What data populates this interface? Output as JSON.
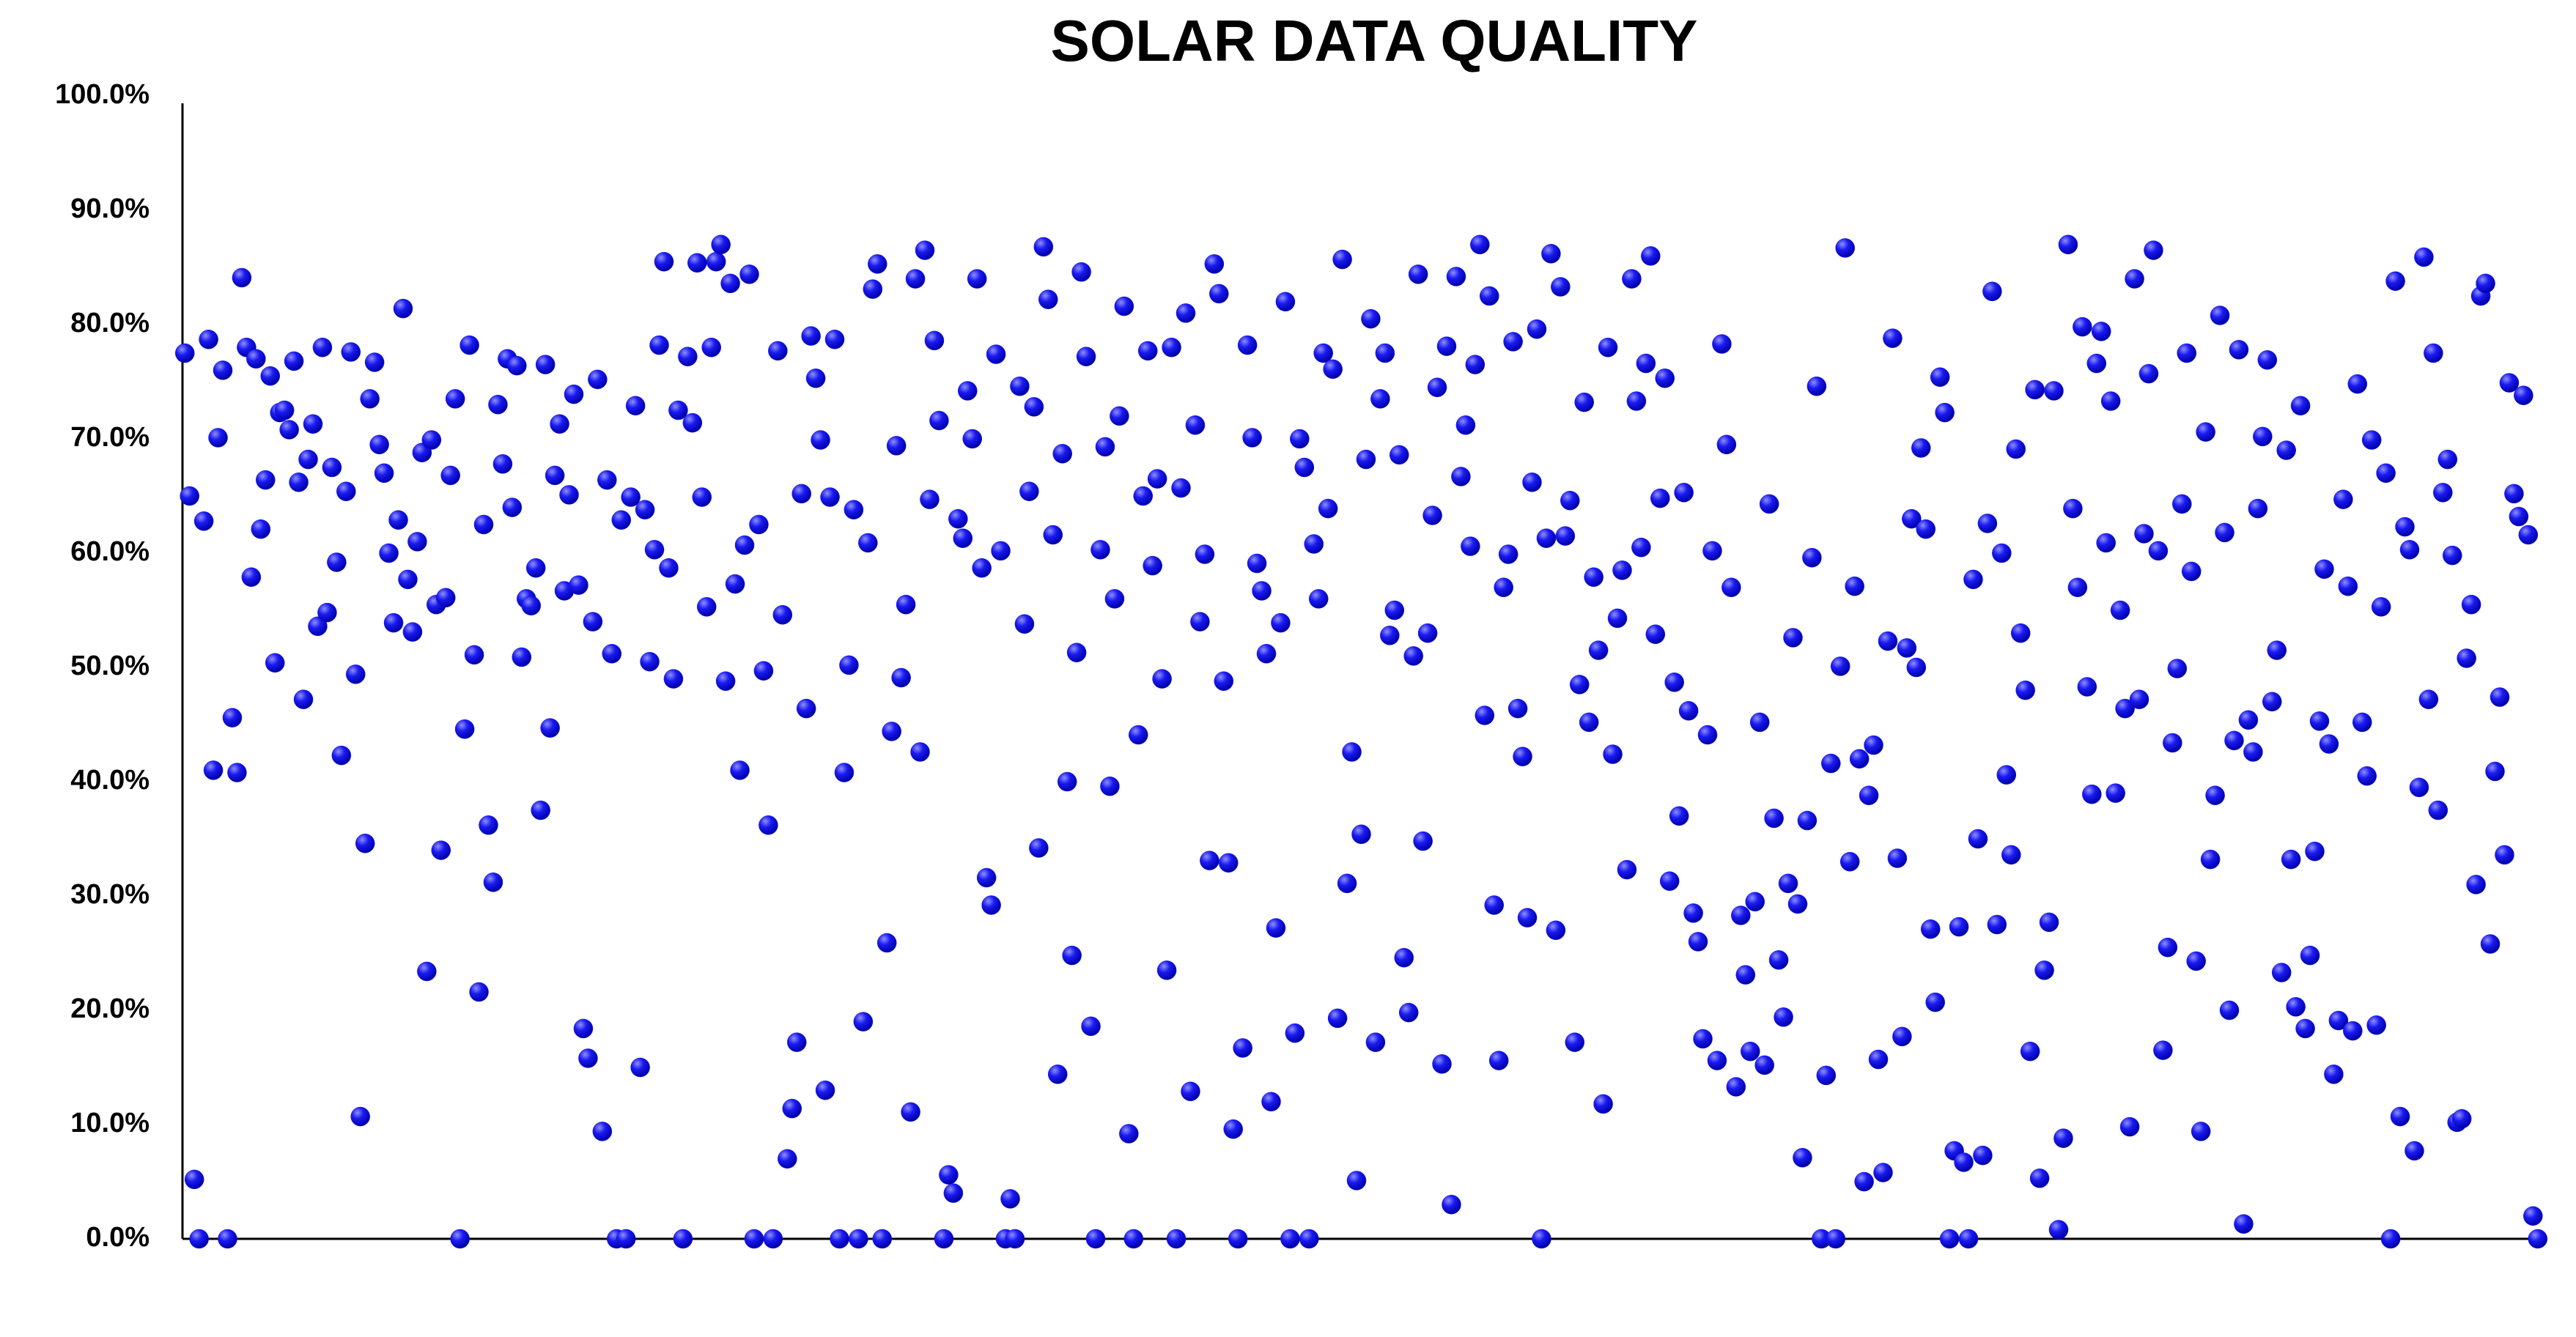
{
  "chart_data": {
    "type": "scatter",
    "title": "SOLAR DATA QUALITY",
    "color": "#1010ee",
    "ylim": [
      0,
      100
    ],
    "yticks": [
      {
        "value": 0,
        "label": "0.0%"
      },
      {
        "value": 10,
        "label": "10.0%"
      },
      {
        "value": 20,
        "label": "20.0%"
      },
      {
        "value": 30,
        "label": "30.0%"
      },
      {
        "value": 40,
        "label": "40.0%"
      },
      {
        "value": 50,
        "label": "50.0%"
      },
      {
        "value": 60,
        "label": "60.0%"
      },
      {
        "value": 70,
        "label": "70.0%"
      },
      {
        "value": 80,
        "label": "80.0%"
      },
      {
        "value": 90,
        "label": "90.0%"
      },
      {
        "value": 100,
        "label": "100.0%"
      }
    ],
    "grid": false,
    "values": [
      77.5,
      65,
      5.2,
      0,
      62.8,
      78.7,
      41,
      70.1,
      76,
      0,
      45.6,
      40.8,
      84.1,
      78,
      57.9,
      77,
      62.1,
      66.4,
      75.5,
      50.4,
      72.3,
      72.5,
      70.8,
      76.8,
      66.2,
      47.2,
      68.2,
      71.3,
      53.6,
      78,
      54.8,
      67.5,
      59.2,
      42.3,
      65.4,
      77.6,
      49.4,
      10.7,
      34.6,
      73.5,
      76.7,
      69.5,
      67,
      60,
      53.9,
      62.9,
      81.4,
      57.7,
      53.1,
      61,
      68.8,
      23.4,
      69.9,
      55.5,
      34,
      56.1,
      66.8,
      73.5,
      0,
      44.6,
      78.2,
      51.1,
      21.6,
      62.5,
      36.2,
      31.2,
      73,
      67.8,
      77,
      64,
      76.4,
      50.9,
      56,
      55.4,
      58.7,
      37.5,
      76.5,
      44.7,
      66.8,
      71.3,
      56.7,
      65.1,
      73.9,
      57.2,
      18.4,
      15.8,
      54,
      75.2,
      9.4,
      66.4,
      51.2,
      0,
      62.9,
      0,
      64.9,
      72.9,
      15,
      63.8,
      50.5,
      60.3,
      78.2,
      85.5,
      58.7,
      49,
      72.5,
      0,
      77.2,
      71.4,
      85.4,
      64.9,
      55.3,
      78,
      85.5,
      87,
      48.8,
      83.6,
      57.3,
      41,
      60.7,
      84.4,
      0,
      62.5,
      49.7,
      36.2,
      0,
      77.7,
      54.6,
      7,
      11.4,
      17.2,
      65.2,
      46.4,
      79,
      75.3,
      69.9,
      13,
      64.9,
      78.7,
      0,
      40.8,
      50.2,
      63.8,
      0,
      19,
      60.9,
      83.1,
      85.3,
      0,
      25.9,
      44.4,
      69.4,
      49.1,
      55.5,
      11.1,
      84,
      42.6,
      86.5,
      64.7,
      78.6,
      71.6,
      0,
      5.6,
      4,
      63,
      61.3,
      74.2,
      70,
      84,
      58.7,
      31.6,
      29.2,
      77.4,
      60.2,
      0,
      3.5,
      0,
      74.6,
      53.8,
      65.4,
      72.8,
      34.2,
      86.8,
      82.2,
      61.6,
      14.4,
      68.7,
      40,
      24.8,
      51.3,
      84.6,
      77.2,
      18.6,
      0,
      60.3,
      69.3,
      39.6,
      56,
      72,
      81.6,
      9.2,
      0,
      44.1,
      65,
      77.7,
      58.9,
      66.5,
      49,
      23.5,
      78,
      0,
      65.7,
      81,
      12.9,
      71.2,
      54,
      59.9,
      33.1,
      85.3,
      82.7,
      48.8,
      32.9,
      9.6,
      0,
      16.7,
      78.2,
      70.1,
      59.1,
      56.7,
      51.2,
      12,
      27.2,
      53.9,
      82,
      0,
      18,
      70,
      67.5,
      0,
      60.8,
      56,
      77.5,
      63.9,
      76.1,
      19.3,
      85.7,
      31.1,
      42.6,
      5.1,
      35.4,
      68.2,
      80.5,
      17.2,
      73.5,
      77.5,
      52.8,
      55,
      68.6,
      24.6,
      19.8,
      51,
      84.4,
      34.8,
      53,
      63.3,
      74.5,
      15.3,
      78.1,
      3,
      84.2,
      66.7,
      71.2,
      60.6,
      76.5,
      87,
      45.8,
      82.5,
      29.2,
      15.6,
      57,
      59.9,
      78.5,
      46.4,
      42.2,
      28.1,
      66.2,
      79.6,
      0,
      61.3,
      86.2,
      27,
      83.3,
      61.5,
      64.6,
      17.2,
      48.5,
      73.2,
      45.2,
      57.9,
      51.5,
      11.8,
      78,
      42.4,
      54.3,
      58.5,
      32.3,
      84,
      73.3,
      60.5,
      76.6,
      86,
      52.9,
      64.8,
      75.3,
      31.3,
      48.7,
      37,
      65.3,
      46.2,
      28.5,
      26,
      17.5,
      44.1,
      60.2,
      15.6,
      78.3,
      69.5,
      57,
      13.3,
      28.3,
      23.1,
      16.4,
      29.5,
      45.2,
      15.2,
      64.3,
      36.8,
      24.4,
      19.4,
      31.1,
      52.6,
      29.3,
      7.1,
      36.6,
      59.6,
      74.6,
      0,
      14.3,
      41.6,
      0,
      50.1,
      86.7,
      33,
      57.1,
      42,
      5,
      38.8,
      43.2,
      15.7,
      5.8,
      52.3,
      78.8,
      33.3,
      17.7,
      51.7,
      63,
      50,
      69.2,
      62.1,
      27.1,
      20.7,
      75.4,
      72.3,
      0,
      7.7,
      27.3,
      6.7,
      0,
      57.7,
      35,
      7.3,
      62.6,
      82.9,
      27.5,
      60,
      40.6,
      33.6,
      69.1,
      53,
      48,
      16.4,
      74.3,
      5.3,
      23.5,
      27.7,
      74.2,
      0.8,
      8.8,
      87,
      63.9,
      57,
      79.8,
      48.3,
      38.9,
      76.6,
      79.4,
      60.9,
      73.3,
      39,
      55,
      46.4,
      9.8,
      84,
      47.2,
      61.7,
      75.7,
      86.5,
      60.2,
      16.5,
      25.5,
      43.4,
      49.9,
      64.3,
      77.5,
      58.4,
      24.3,
      9.4,
      70.6,
      33.2,
      38.8,
      80.8,
      61.8,
      20,
      43.6,
      77.8,
      1.3,
      45.4,
      42.6,
      63.9,
      70.2,
      76.9,
      47,
      51.5,
      23.3,
      69,
      33.2,
      20.3,
      72.9,
      18.4,
      24.8,
      33.9,
      45.3,
      58.6,
      43.3,
      14.4,
      19.1,
      64.7,
      57.1,
      18.2,
      74.8,
      45.2,
      40.5,
      69.9,
      18.7,
      55.3,
      67,
      0,
      83.8,
      10.7,
      62.3,
      60.3,
      7.7,
      39.5,
      85.9,
      47.2,
      77.5,
      37.5,
      65.3,
      68.2,
      59.8,
      10.2,
      10.5,
      50.8,
      55.5,
      31,
      82.5,
      83.6,
      25.8,
      40.9,
      47.4,
      33.6,
      74.9,
      65.2,
      63.2,
      73.8,
      61.6,
      2,
      0
    ]
  }
}
